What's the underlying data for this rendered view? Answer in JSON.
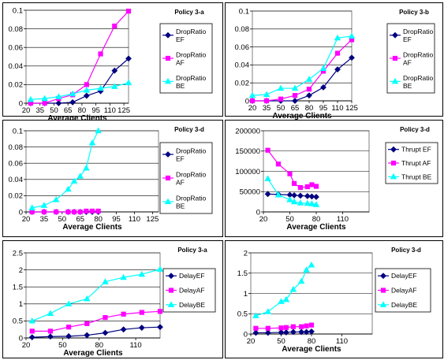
{
  "chart_data": [
    {
      "type": "line",
      "title": "Policy 3-a",
      "xlabel": "Average Clients",
      "x": [
        25,
        40,
        55,
        70,
        85,
        100,
        115,
        130
      ],
      "xticks": [
        "20",
        "35",
        "50",
        "65",
        "80",
        "95",
        "110",
        "125"
      ],
      "xlim": [
        20,
        130
      ],
      "ylim": [
        0,
        0.1
      ],
      "yticks": [
        "0",
        "0.02",
        "0.04",
        "0.06",
        "0.08",
        "0.1"
      ],
      "legend_lines": 2,
      "series": [
        {
          "name": "DropRatio EF",
          "color": "#000080",
          "marker": "diamond",
          "values": [
            0,
            0,
            0,
            0.001,
            0.008,
            0.013,
            0.035,
            0.048
          ]
        },
        {
          "name": "DropRatio AF",
          "color": "#ff00ff",
          "marker": "square",
          "values": [
            0,
            0,
            0.005,
            0.009,
            0.02,
            0.053,
            0.083,
            0.099
          ]
        },
        {
          "name": "DropRatio BE",
          "color": "#00ffff",
          "marker": "triangle",
          "values": [
            0.004,
            0.005,
            0.007,
            0.01,
            0.014,
            0.016,
            0.018,
            0.022
          ]
        }
      ]
    },
    {
      "type": "line",
      "title": "Policy 3-b",
      "xlabel": "Average Clients",
      "x": [
        20,
        35,
        50,
        65,
        80,
        95,
        110,
        125
      ],
      "xticks": [
        "20",
        "35",
        "50",
        "65",
        "80",
        "95",
        "110",
        "125"
      ],
      "xlim": [
        20,
        125
      ],
      "ylim": [
        0,
        0.1
      ],
      "yticks": [
        "0",
        "0.02",
        "0.04",
        "0.06",
        "0.08",
        "0.1"
      ],
      "legend_lines": 2,
      "series": [
        {
          "name": "DropRatio EF",
          "color": "#000080",
          "marker": "diamond",
          "values": [
            0,
            0,
            0,
            0,
            0.006,
            0.015,
            0.035,
            0.048
          ]
        },
        {
          "name": "DropRatio AF",
          "color": "#ff00ff",
          "marker": "square",
          "values": [
            0,
            0,
            0.002,
            0.006,
            0.013,
            0.033,
            0.053,
            0.068
          ]
        },
        {
          "name": "DropRatio BE",
          "color": "#00ffff",
          "marker": "triangle",
          "values": [
            0.006,
            0.007,
            0.014,
            0.014,
            0.024,
            0.036,
            0.07,
            0.072
          ]
        }
      ]
    },
    {
      "type": "line",
      "title": "Policy 3-d",
      "xlabel": "Average Clients",
      "x": [
        25,
        35,
        45,
        55,
        60,
        65,
        70,
        75,
        80
      ],
      "xticks": [
        "20",
        "35",
        "50",
        "65",
        "80",
        "95",
        "110",
        "125"
      ],
      "xlim": [
        20,
        130
      ],
      "ylim": [
        0,
        0.1
      ],
      "yticks": [
        "0",
        "0.02",
        "0.04",
        "0.06",
        "0.08",
        "0.1"
      ],
      "legend_lines": 2,
      "series": [
        {
          "name": "DropRatio EF",
          "color": "#000080",
          "marker": "diamond",
          "values": [
            0,
            0,
            0,
            0,
            0,
            0,
            0,
            0,
            0
          ]
        },
        {
          "name": "DropRatio AF",
          "color": "#ff00ff",
          "marker": "square",
          "values": [
            0,
            0,
            0,
            0,
            0,
            0,
            0.001,
            0.001,
            0.001
          ]
        },
        {
          "name": "DropRatio BE",
          "color": "#00ffff",
          "marker": "triangle",
          "values": [
            0.005,
            0.008,
            0.015,
            0.028,
            0.038,
            0.044,
            0.054,
            0.085,
            0.1
          ]
        }
      ]
    },
    {
      "type": "line",
      "title": "Policy 3-d",
      "xlabel": "Average Clients",
      "x": [
        25,
        37,
        50,
        55,
        62,
        70,
        75,
        80
      ],
      "xticks": [
        "20",
        "50",
        "80",
        "110"
      ],
      "xlim": [
        20,
        140
      ],
      "ylim": [
        0,
        200000
      ],
      "yticks": [
        "0",
        "50000",
        "100000",
        "150000",
        "200000"
      ],
      "legend_lines": 1,
      "series": [
        {
          "name": "Thrupt EF",
          "color": "#000080",
          "marker": "diamond",
          "values": [
            44000,
            43000,
            42000,
            41000,
            40000,
            39000,
            38000,
            37000
          ]
        },
        {
          "name": "Thrupt AF",
          "color": "#ff00ff",
          "marker": "square",
          "values": [
            152000,
            118000,
            94000,
            70000,
            60000,
            62000,
            67000,
            63000
          ]
        },
        {
          "name": "Thrupt BE",
          "color": "#00ffff",
          "marker": "triangle",
          "values": [
            82000,
            42000,
            30000,
            25000,
            22000,
            21000,
            20000,
            18000
          ]
        }
      ]
    },
    {
      "type": "line",
      "title": "Policy 3-a",
      "xlabel": "Average Clients",
      "x": [
        25,
        40,
        55,
        70,
        85,
        100,
        115,
        130
      ],
      "xticks": [
        "20",
        "50",
        "80",
        "110"
      ],
      "xlim": [
        20,
        130
      ],
      "ylim": [
        0,
        2.5
      ],
      "yticks": [
        "0",
        "0.5",
        "1",
        "1.5",
        "2",
        "2.5"
      ],
      "legend_lines": 1,
      "series": [
        {
          "name": "DelayEF",
          "color": "#000080",
          "marker": "diamond",
          "values": [
            0.02,
            0.04,
            0.05,
            0.08,
            0.15,
            0.25,
            0.3,
            0.32
          ]
        },
        {
          "name": "DelayAF",
          "color": "#ff00ff",
          "marker": "square",
          "values": [
            0.2,
            0.2,
            0.32,
            0.42,
            0.6,
            0.7,
            0.75,
            0.78
          ]
        },
        {
          "name": "DelayBE",
          "color": "#00ffff",
          "marker": "triangle",
          "values": [
            0.5,
            0.72,
            1.0,
            1.15,
            1.65,
            1.78,
            1.87,
            2.02
          ]
        }
      ]
    },
    {
      "type": "line",
      "title": "Policy 3-d",
      "xlabel": "Average Clients",
      "x": [
        25,
        37,
        50,
        55,
        62,
        70,
        75,
        80
      ],
      "xticks": [
        "20",
        "50",
        "80",
        "110"
      ],
      "xlim": [
        20,
        140
      ],
      "ylim": [
        0,
        2
      ],
      "yticks": [
        "0",
        "0.5",
        "1",
        "1.5",
        "2"
      ],
      "legend_lines": 1,
      "series": [
        {
          "name": "DelayEF",
          "color": "#000080",
          "marker": "diamond",
          "values": [
            0.03,
            0.03,
            0.04,
            0.04,
            0.05,
            0.05,
            0.05,
            0.06
          ]
        },
        {
          "name": "DelayAF",
          "color": "#ff00ff",
          "marker": "square",
          "values": [
            0.14,
            0.14,
            0.15,
            0.16,
            0.18,
            0.18,
            0.2,
            0.22
          ]
        },
        {
          "name": "DelayBE",
          "color": "#00ffff",
          "marker": "triangle",
          "values": [
            0.45,
            0.55,
            0.8,
            0.85,
            1.1,
            1.3,
            1.58,
            1.7
          ]
        }
      ]
    }
  ]
}
